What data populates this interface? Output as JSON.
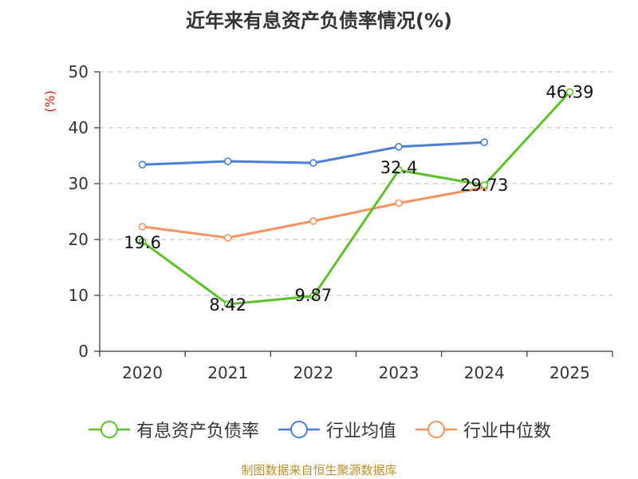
{
  "chart_data": {
    "type": "line",
    "title": "近年来有息资产负债率情况(%)",
    "ylabel": "(%)",
    "categories": [
      "2020",
      "2021",
      "2022",
      "2023",
      "2024",
      "2025"
    ],
    "ylim": [
      0,
      50
    ],
    "yticks": [
      0,
      10,
      20,
      30,
      40,
      50
    ],
    "grid": true,
    "legend_position": "bottom",
    "series": [
      {
        "name": "有息资产负债率",
        "color": "#5cc12b",
        "values": [
          19.6,
          8.42,
          9.87,
          32.4,
          29.73,
          46.39
        ],
        "labels": [
          "19.6",
          "8.42",
          "9.87",
          "32.4",
          "29.73",
          "46.39"
        ]
      },
      {
        "name": "行业均值",
        "color": "#4a7fd6",
        "values": [
          33.4,
          34.0,
          33.7,
          36.6,
          37.4,
          null
        ]
      },
      {
        "name": "行业中位数",
        "color": "#f59362",
        "values": [
          22.3,
          20.3,
          23.3,
          26.5,
          29.3,
          null
        ]
      }
    ]
  },
  "source": "制图数据来自恒生聚源数据库"
}
